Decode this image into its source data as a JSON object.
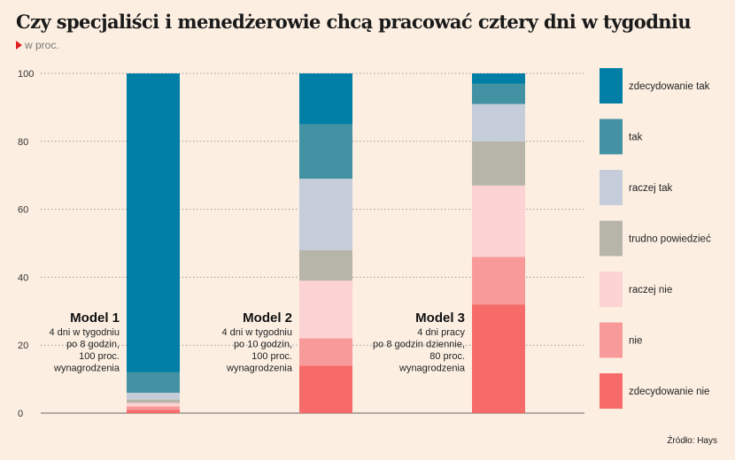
{
  "title": "Czy specjaliści i menedżerowie chcą pracować cztery dni w tygodniu",
  "subtitle": "w proc.",
  "source": "Źródło: Hays",
  "chart_data": {
    "type": "bar",
    "stacked": true,
    "ylim": [
      0,
      100
    ],
    "yticks": [
      "0",
      "20",
      "40",
      "60",
      "80",
      "100"
    ],
    "grid": true,
    "legend_position": "right",
    "categories": [
      {
        "name": "Model 1",
        "desc": [
          "4 dni w tygodniu",
          "po 8 godzin,",
          "100 proc.",
          "wynagrodzenia"
        ]
      },
      {
        "name": "Model 2",
        "desc": [
          "4 dni w tygodniu",
          "po 10 godzin,",
          "100 proc.",
          "wynagrodzenia"
        ]
      },
      {
        "name": "Model 3",
        "desc": [
          "4 dni pracy",
          "po 8 godzin dziennie,",
          "80 proc.",
          "wynagrodzenia"
        ]
      }
    ],
    "series": [
      {
        "name": "zdecydowanie nie",
        "color": "#f76a6a",
        "values": [
          1,
          14,
          32
        ]
      },
      {
        "name": "nie",
        "color": "#f99a9a",
        "values": [
          1,
          8,
          14
        ]
      },
      {
        "name": "raczej nie",
        "color": "#fdd2d2",
        "values": [
          1,
          17,
          21
        ]
      },
      {
        "name": "trudno powiedzieć",
        "color": "#b7b5a9",
        "values": [
          1,
          9,
          13
        ]
      },
      {
        "name": "raczej tak",
        "color": "#c5cdda",
        "values": [
          2,
          21,
          11
        ]
      },
      {
        "name": "tak",
        "color": "#4392a3",
        "values": [
          6,
          16,
          6
        ]
      },
      {
        "name": "zdecydowanie tak",
        "color": "#007ea6",
        "values": [
          88,
          15,
          3
        ]
      }
    ]
  }
}
